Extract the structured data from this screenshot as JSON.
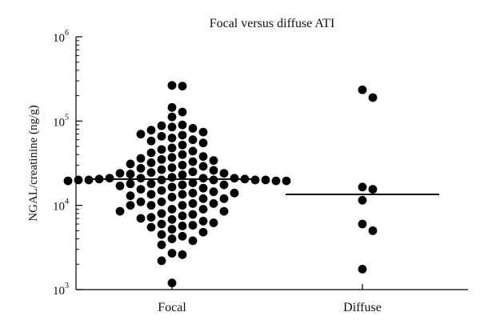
{
  "chart_data": {
    "type": "scatter",
    "title": "Focal versus diffuse ATI",
    "xlabel": "",
    "ylabel": "NGAL/creatinine (ng/g)",
    "yscale": "log",
    "ylim": [
      1000,
      1000000
    ],
    "grid": false,
    "legend": "none",
    "marker_color": "#000000",
    "y_ticks": [
      {
        "value": 1000,
        "base": "10",
        "exp": "3"
      },
      {
        "value": 10000,
        "base": "10",
        "exp": "4"
      },
      {
        "value": 100000,
        "base": "10",
        "exp": "5"
      },
      {
        "value": 1000000,
        "base": "10",
        "exp": "6"
      }
    ],
    "categories": [
      "Focal",
      "Diffuse"
    ],
    "series": [
      {
        "category": "Focal",
        "median": 20500,
        "values": [
          260000,
          265000,
          145000,
          128000,
          112000,
          90000,
          88000,
          85000,
          82000,
          78000,
          74000,
          70000,
          68000,
          66000,
          63000,
          60000,
          58000,
          55000,
          52000,
          48000,
          46000,
          44000,
          42000,
          40000,
          38000,
          37000,
          36000,
          35000,
          34000,
          33000,
          32000,
          31000,
          30000,
          29000,
          28000,
          27500,
          26500,
          26000,
          25000,
          24500,
          24000,
          24000,
          23500,
          23000,
          21500,
          21000,
          21000,
          21000,
          21000,
          20500,
          20500,
          20000,
          20000,
          20000,
          20000,
          20000,
          20000,
          19500,
          19500,
          19500,
          18500,
          18000,
          18000,
          17500,
          17500,
          17000,
          16500,
          16000,
          15500,
          15000,
          14500,
          14000,
          14000,
          13500,
          13500,
          13000,
          12500,
          12000,
          12000,
          11000,
          11000,
          10500,
          10500,
          10000,
          10000,
          10000,
          9000,
          9000,
          8500,
          8500,
          8000,
          7800,
          7500,
          7200,
          7000,
          6800,
          6500,
          6200,
          6000,
          5800,
          5700,
          5500,
          5200,
          4800,
          4500,
          4300,
          4000,
          3800,
          3400,
          2700,
          2600,
          2200,
          1200
        ]
      },
      {
        "category": "Diffuse",
        "median": 13500,
        "values": [
          235000,
          190000,
          16500,
          15500,
          11500,
          6000,
          5000,
          1750
        ]
      }
    ]
  }
}
